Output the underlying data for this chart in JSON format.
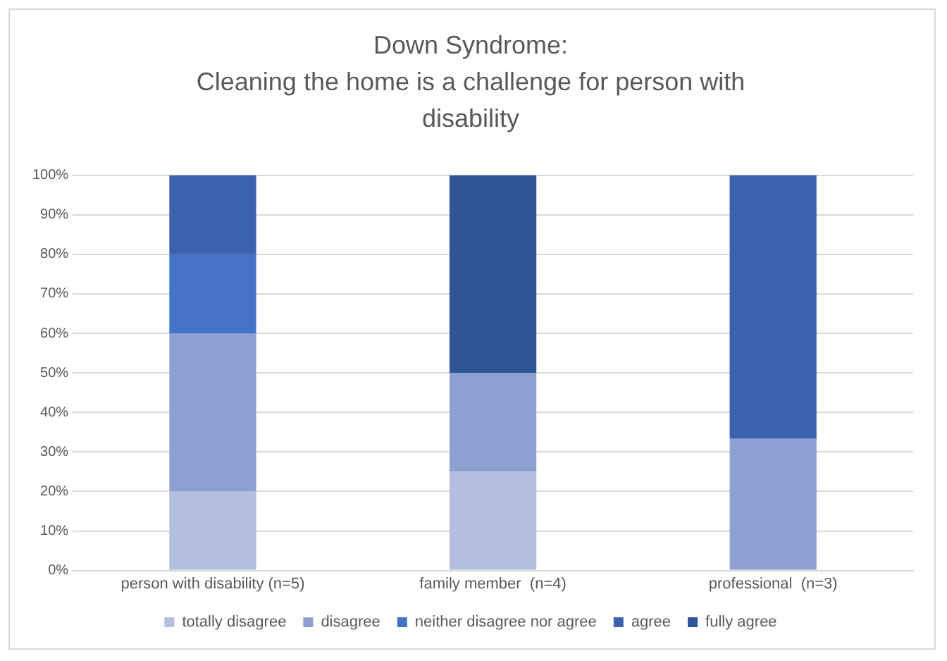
{
  "chart_data": {
    "type": "bar",
    "stacked": true,
    "title": [
      "Down Syndrome:",
      "Cleaning the home is a challenge for person with",
      "disability"
    ],
    "categories": [
      "person with disability (n=5)",
      "family member  (n=4)",
      "professional  (n=3)"
    ],
    "series": [
      {
        "name": "totally disagree",
        "color": "#b4bedf",
        "values": [
          20,
          25,
          0
        ]
      },
      {
        "name": "disagree",
        "color": "#8ea0d2",
        "values": [
          40,
          25,
          33.3
        ]
      },
      {
        "name": "neither disagree nor agree",
        "color": "#4472c4",
        "values": [
          20,
          0,
          0
        ]
      },
      {
        "name": "agree",
        "color": "#3c62ae",
        "values": [
          20,
          0,
          66.7
        ]
      },
      {
        "name": "fully agree",
        "color": "#2f5597",
        "values": [
          0,
          50,
          0
        ]
      }
    ],
    "ylim": [
      0,
      100
    ],
    "yticks": [
      {
        "value": 0,
        "label": "0%"
      },
      {
        "value": 10,
        "label": "10%"
      },
      {
        "value": 20,
        "label": "20%"
      },
      {
        "value": 30,
        "label": "30%"
      },
      {
        "value": 40,
        "label": "40%"
      },
      {
        "value": 50,
        "label": "50%"
      },
      {
        "value": 60,
        "label": "60%"
      },
      {
        "value": 70,
        "label": "70%"
      },
      {
        "value": 80,
        "label": "80%"
      },
      {
        "value": 90,
        "label": "90%"
      },
      {
        "value": 100,
        "label": "100%"
      }
    ],
    "grid": "y",
    "legend": "bottom"
  }
}
